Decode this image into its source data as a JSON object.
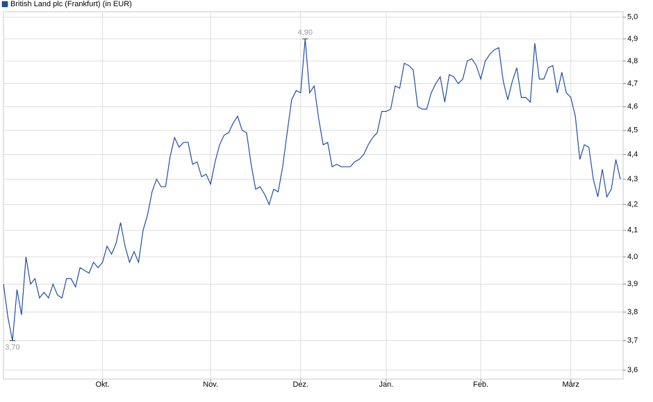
{
  "chart_data": {
    "type": "line",
    "log": true,
    "grid": true,
    "legend": "top-left",
    "yaxis_side": "right",
    "categories": [
      null,
      null,
      null,
      null,
      null,
      null,
      null,
      null,
      null,
      null,
      null,
      null,
      null,
      null,
      null,
      null,
      null,
      null,
      null,
      null,
      null,
      null,
      "Okt.",
      null,
      null,
      null,
      null,
      null,
      null,
      null,
      null,
      null,
      null,
      null,
      null,
      null,
      null,
      null,
      null,
      null,
      null,
      null,
      null,
      null,
      null,
      null,
      "Nov.",
      null,
      null,
      null,
      null,
      null,
      null,
      null,
      null,
      null,
      null,
      null,
      null,
      null,
      null,
      null,
      null,
      null,
      null,
      null,
      "Dez.",
      null,
      null,
      null,
      null,
      null,
      null,
      null,
      null,
      null,
      null,
      null,
      null,
      null,
      null,
      null,
      null,
      null,
      null,
      "Jan.",
      null,
      null,
      null,
      null,
      null,
      null,
      null,
      null,
      null,
      null,
      null,
      null,
      null,
      null,
      null,
      null,
      null,
      null,
      null,
      null,
      "Feb.",
      null,
      null,
      null,
      null,
      null,
      null,
      null,
      null,
      null,
      null,
      null,
      null,
      null,
      null,
      null,
      null,
      null,
      null,
      null,
      "März",
      null,
      null,
      null,
      null,
      null,
      null,
      null,
      null,
      null,
      null,
      null
    ],
    "series": [
      {
        "name": "British Land plc (Frankfurt) (in EUR)",
        "color": "#1f4e9c",
        "values": [
          3.9,
          3.78,
          3.7,
          3.88,
          3.79,
          4.0,
          3.9,
          3.92,
          3.85,
          3.87,
          3.85,
          3.9,
          3.86,
          3.85,
          3.92,
          3.92,
          3.89,
          3.96,
          3.95,
          3.94,
          3.98,
          3.96,
          3.98,
          4.04,
          4.01,
          4.05,
          4.13,
          4.04,
          3.98,
          4.02,
          3.98,
          4.1,
          4.16,
          4.25,
          4.3,
          4.27,
          4.27,
          4.39,
          4.47,
          4.43,
          4.45,
          4.45,
          4.36,
          4.37,
          4.31,
          4.32,
          4.28,
          4.37,
          4.44,
          4.48,
          4.49,
          4.53,
          4.56,
          4.5,
          4.49,
          4.36,
          4.26,
          4.27,
          4.24,
          4.2,
          4.26,
          4.25,
          4.35,
          4.49,
          4.63,
          4.67,
          4.66,
          4.9,
          4.66,
          4.69,
          4.55,
          4.44,
          4.45,
          4.35,
          4.36,
          4.35,
          4.35,
          4.35,
          4.37,
          4.38,
          4.4,
          4.44,
          4.47,
          4.49,
          4.58,
          4.58,
          4.59,
          4.69,
          4.68,
          4.79,
          4.78,
          4.76,
          4.6,
          4.59,
          4.59,
          4.66,
          4.7,
          4.73,
          4.62,
          4.74,
          4.73,
          4.7,
          4.72,
          4.8,
          4.81,
          4.78,
          4.72,
          4.8,
          4.83,
          4.85,
          4.86,
          4.71,
          4.63,
          4.71,
          4.77,
          4.64,
          4.64,
          4.62,
          4.88,
          4.72,
          4.72,
          4.77,
          4.78,
          4.66,
          4.75,
          4.66,
          4.64,
          4.56,
          4.38,
          4.44,
          4.43,
          4.3,
          4.23,
          4.34,
          4.23,
          4.26,
          4.38,
          4.3
        ],
        "value_labels": [
          null,
          null,
          "3,70",
          null,
          null,
          null,
          null,
          null,
          null,
          null,
          null,
          null,
          null,
          null,
          null,
          null,
          null,
          null,
          null,
          null,
          null,
          null,
          null,
          null,
          null,
          null,
          null,
          null,
          null,
          null,
          null,
          null,
          null,
          null,
          null,
          null,
          null,
          null,
          null,
          null,
          null,
          null,
          null,
          null,
          null,
          null,
          null,
          null,
          null,
          null,
          null,
          null,
          null,
          null,
          null,
          null,
          null,
          null,
          null,
          null,
          null,
          null,
          null,
          null,
          null,
          null,
          null,
          "4,90",
          null,
          null,
          null,
          null,
          null,
          null,
          null,
          null,
          null,
          null,
          null,
          null,
          null,
          null,
          null,
          null,
          null,
          null,
          null,
          null,
          null,
          null,
          null,
          null,
          null,
          null,
          null,
          null,
          null,
          null,
          null,
          null,
          null,
          null,
          null,
          null,
          null,
          null,
          null,
          null,
          null,
          null,
          null,
          null,
          null,
          null,
          null,
          null,
          null,
          null,
          null,
          null,
          null,
          null,
          null,
          null,
          null,
          null,
          null,
          null,
          null,
          null,
          null,
          null,
          null,
          null,
          null,
          null,
          null,
          null
        ]
      }
    ],
    "ylim": [
      3.57,
      5.025
    ],
    "yticks": [
      {
        "value": 3.6,
        "label": "3,6"
      },
      {
        "value": 3.7,
        "label": "3,7"
      },
      {
        "value": 3.8,
        "label": "3,8"
      },
      {
        "value": 3.9,
        "label": "3,9"
      },
      {
        "value": 4.0,
        "label": "4,0"
      },
      {
        "value": 4.1,
        "label": "4,1"
      },
      {
        "value": 4.2,
        "label": "4,2"
      },
      {
        "value": 4.3,
        "label": "4,3"
      },
      {
        "value": 4.4,
        "label": "4,4"
      },
      {
        "value": 4.5,
        "label": "4,5"
      },
      {
        "value": 4.6,
        "label": "4,6"
      },
      {
        "value": 4.7,
        "label": "4,7"
      },
      {
        "value": 4.8,
        "label": "4,8"
      },
      {
        "value": 4.9,
        "label": "4,9"
      },
      {
        "value": 5.0,
        "label": "5,0"
      }
    ]
  }
}
